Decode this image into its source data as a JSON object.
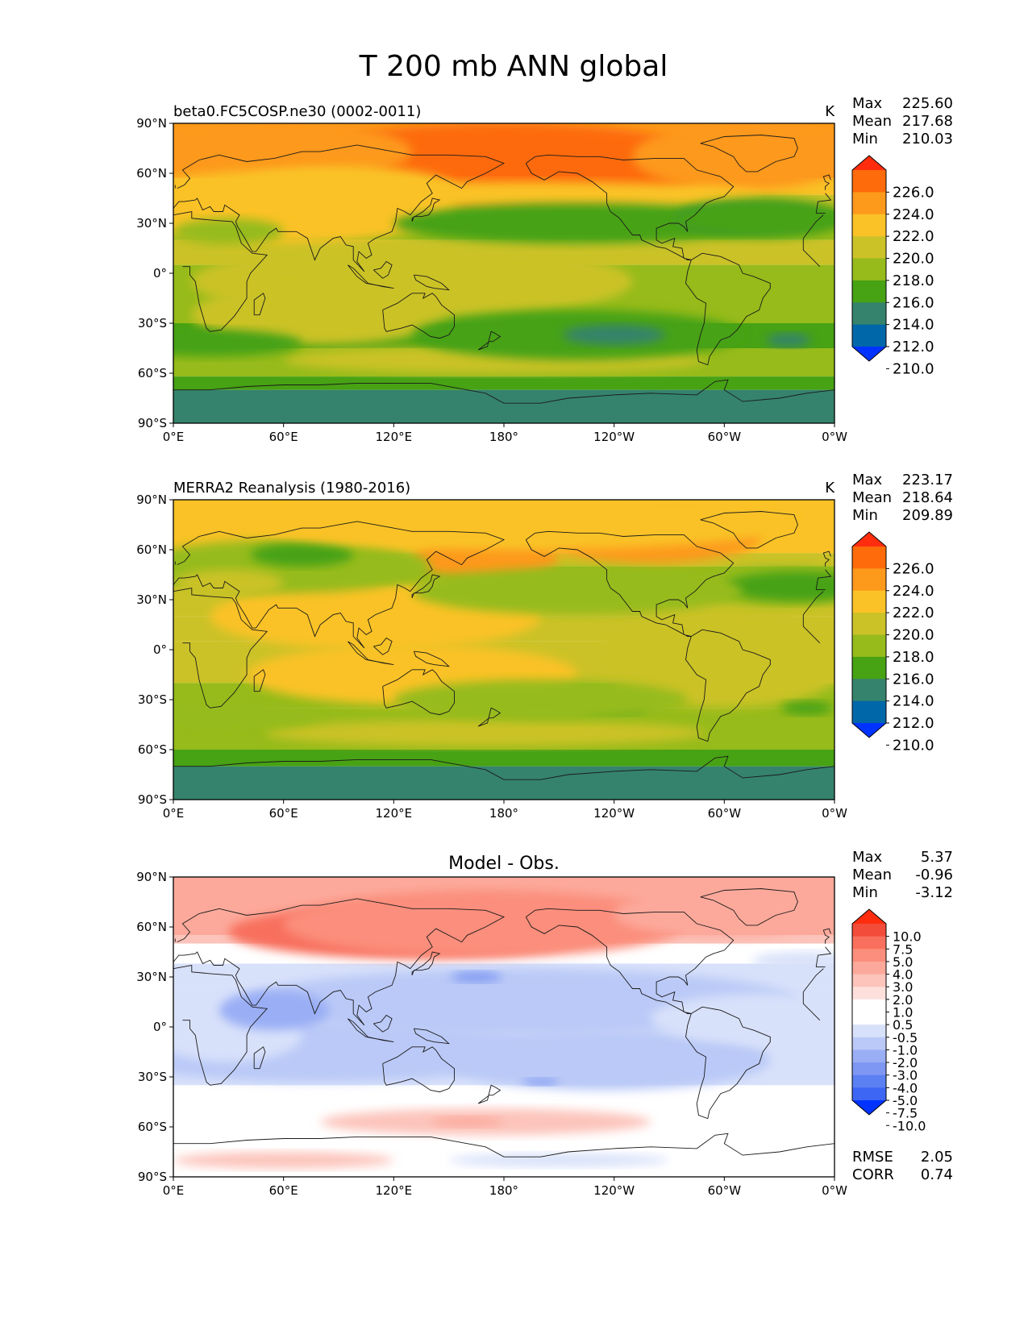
{
  "figure": {
    "title": "T 200 mb ANN global"
  },
  "axes": {
    "lon_ticks": [
      "0°E",
      "60°E",
      "120°E",
      "180°",
      "120°W",
      "60°W",
      "0°W"
    ],
    "lat_ticks": [
      "90°N",
      "60°N",
      "30°N",
      "0°",
      "30°S",
      "60°S",
      "90°S"
    ]
  },
  "panels": [
    {
      "id": "model",
      "title_left": "beta0.FC5COSP.ne30 (0002-0011)",
      "title_right": "K",
      "title_center": "",
      "stats": [
        {
          "label": "Max",
          "value": "225.60"
        },
        {
          "label": "Mean",
          "value": "217.68"
        },
        {
          "label": "Min",
          "value": "210.03"
        }
      ],
      "colorbar_labels": [
        "226.0",
        "224.0",
        "222.0",
        "220.0",
        "218.0",
        "216.0",
        "214.0",
        "212.0",
        "210.0"
      ]
    },
    {
      "id": "obs",
      "title_left": "MERRA2 Reanalysis (1980-2016)",
      "title_right": "K",
      "title_center": "",
      "stats": [
        {
          "label": "Max",
          "value": "223.17"
        },
        {
          "label": "Mean",
          "value": "218.64"
        },
        {
          "label": "Min",
          "value": "209.89"
        }
      ],
      "colorbar_labels": [
        "226.0",
        "224.0",
        "222.0",
        "220.0",
        "218.0",
        "216.0",
        "214.0",
        "212.0",
        "210.0"
      ]
    },
    {
      "id": "diff",
      "title_left": "",
      "title_right": "",
      "title_center": "Model - Obs.",
      "stats": [
        {
          "label": "Max",
          "value": "5.37"
        },
        {
          "label": "Mean",
          "value": "-0.96"
        },
        {
          "label": "Min",
          "value": "-3.12"
        }
      ],
      "colorbar_labels": [
        "10.0",
        "7.5",
        "5.0",
        "4.0",
        "3.0",
        "2.0",
        "1.0",
        "0.5",
        "-0.5",
        "-1.0",
        "-2.0",
        "-3.0",
        "-4.0",
        "-5.0",
        "-7.5",
        "-10.0"
      ],
      "extra_stats": [
        {
          "label": "RMSE",
          "value": "2.05"
        },
        {
          "label": "CORR",
          "value": "0.74"
        }
      ]
    }
  ],
  "colors": {
    "abs_colorbar": [
      "#0033ff",
      "#0067a8",
      "#35836c",
      "#47a214",
      "#96bb1a",
      "#cbc228",
      "#fac226",
      "#fd991b",
      "#fd6b0b",
      "#ff2d0e"
    ],
    "diff_colorbar": [
      "#0033ff",
      "#3d66f5",
      "#5b80f2",
      "#7d97f2",
      "#9aaef5",
      "#bac9f7",
      "#d8e1fa",
      "#ffffff",
      "#ffffff",
      "#fde0dc",
      "#fcc4bb",
      "#fca99b",
      "#fb8e7c",
      "#f8705d",
      "#f34c3a",
      "#ff2d0e"
    ],
    "frame": "#000000",
    "coast": "#1a1a1a"
  },
  "chart_data": {
    "type": "heatmap",
    "projection": "plate carree, 0E to 360E",
    "variable": "T 200 mb",
    "units": "K",
    "x_range": [
      0,
      360
    ],
    "y_range": [
      -90,
      90
    ],
    "abs_levels": [
      210,
      212,
      214,
      216,
      218,
      220,
      222,
      224,
      226
    ],
    "diff_levels": [
      -10,
      -7.5,
      -5,
      -4,
      -3,
      -2,
      -1,
      -0.5,
      0.5,
      1,
      2,
      3,
      4,
      5,
      7.5,
      10
    ],
    "zonal_mean_profiles_approx": {
      "latitude": [
        90,
        75,
        60,
        45,
        30,
        15,
        0,
        -15,
        -30,
        -45,
        -60,
        -75,
        -90
      ],
      "model_K": [
        223,
        224,
        222,
        217,
        215,
        217,
        217,
        218,
        215,
        217,
        216,
        212,
        212
      ],
      "obs_K": [
        220,
        221,
        218,
        217,
        217,
        219,
        219,
        220,
        217,
        217,
        216,
        213,
        213
      ],
      "diff_K": [
        3,
        3,
        4,
        0,
        -2,
        -2,
        -2,
        -2,
        -2,
        -1,
        0,
        0,
        0
      ]
    },
    "features": [
      {
        "panel": "model",
        "region": "Arctic / North Pacific high latitudes",
        "value_K": 224
      },
      {
        "panel": "model",
        "region": "North Pacific 30N",
        "value_K": 215
      },
      {
        "panel": "model",
        "region": "North Atlantic 30N",
        "value_K": 213
      },
      {
        "panel": "model",
        "region": "South Pacific 30S",
        "value_K": 213
      },
      {
        "panel": "model",
        "region": "Antarctica",
        "value_K": 211
      },
      {
        "panel": "obs",
        "region": "Arctic Canada",
        "value_K": 223
      },
      {
        "panel": "obs",
        "region": "Tibet 30N",
        "value_K": 223
      },
      {
        "panel": "obs",
        "region": "Antarctica interior",
        "value_K": 210
      },
      {
        "panel": "diff",
        "region": "East Asia / North Pacific 50N",
        "value_K": 5
      },
      {
        "panel": "diff",
        "region": "Tropical belt",
        "value_K": -2
      }
    ]
  }
}
